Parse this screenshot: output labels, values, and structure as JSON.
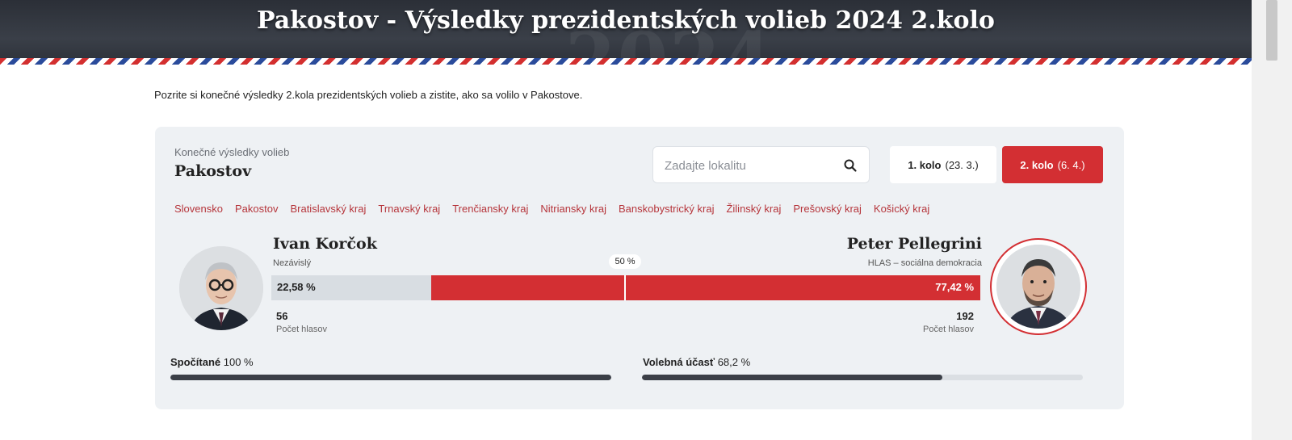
{
  "header": {
    "title": "Pakostov - Výsledky prezidentských volieb 2024 2.kolo",
    "background_year": "2024"
  },
  "intro": "Pozrite si konečné výsledky 2.kola prezidentských volieb a zistite, ako sa volilo v Pakostove.",
  "panel": {
    "subtitle": "Konečné výsledky volieb",
    "title": "Pakostov",
    "search": {
      "placeholder": "Zadajte lokalitu",
      "icon": "search-icon"
    },
    "rounds": [
      {
        "label": "1. kolo",
        "date": "(23. 3.)",
        "active": false
      },
      {
        "label": "2. kolo",
        "date": "(6. 4.)",
        "active": true
      }
    ],
    "regions": [
      "Slovensko",
      "Pakostov",
      "Bratislavský kraj",
      "Trnavský kraj",
      "Trenčiansky kraj",
      "Nitriansky kraj",
      "Banskobystrický kraj",
      "Žilinský kraj",
      "Prešovský kraj",
      "Košický kraj"
    ]
  },
  "results": {
    "half_marker": "50 %",
    "left": {
      "name": "Ivan Korčok",
      "party": "Nezávislý",
      "percent_label": "22,58 %",
      "percent": 22.58,
      "votes": "56",
      "votes_label": "Počet hlasov"
    },
    "right": {
      "name": "Peter Pellegrini",
      "party": "HLAS – sociálna demokracia",
      "percent_label": "77,42 %",
      "percent": 77.42,
      "votes": "192",
      "votes_label": "Počet hlasov"
    }
  },
  "progress": {
    "counted": {
      "label": "Spočítané",
      "value_label": "100 %",
      "value": 100
    },
    "turnout": {
      "label": "Volebná účasť",
      "value_label": "68,2 %",
      "value": 68.2
    }
  },
  "colors": {
    "accent_red": "#d32f33",
    "panel_bg": "#eef1f4",
    "bar_grey": "#d8dde2",
    "link_red": "#b6363c"
  }
}
